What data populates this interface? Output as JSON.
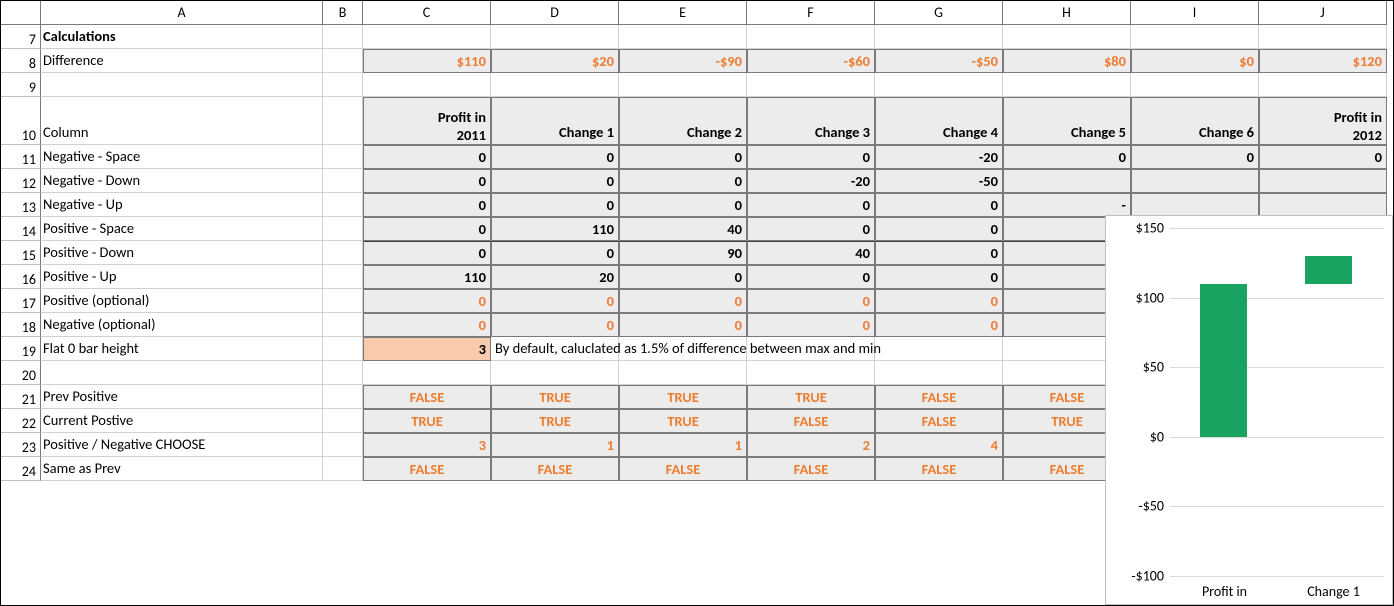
{
  "columns": {
    "rownum_width": 40,
    "labels": [
      "A",
      "B",
      "C",
      "D",
      "E",
      "F",
      "G",
      "H",
      "I",
      "J"
    ]
  },
  "colors": {
    "orange": "#ED7D31",
    "gray_fill": "#ececec",
    "peach_fill": "#F8CBAD",
    "chart_bar": "#1AA260",
    "grid": "#d9d9d9"
  },
  "rows": [
    {
      "num": 7,
      "A": "Calculations",
      "A_bold": true
    },
    {
      "num": 8,
      "A": "Difference",
      "style": "money-orange",
      "C": "$110",
      "D": "$20",
      "E": "-$90",
      "F": "-$60",
      "G": "-$50",
      "H": "$80",
      "I": "$0",
      "J": "$120"
    },
    {
      "num": 9
    },
    {
      "num": 10,
      "height": 2,
      "A": "Column",
      "style": "header",
      "C": "Profit in\n2011",
      "D": "Change 1",
      "E": "Change 2",
      "F": "Change 3",
      "G": "Change 4",
      "H": "Change 5",
      "I": "Change 6",
      "J": "Profit in\n2012"
    },
    {
      "num": 11,
      "A": "Negative - Space",
      "style": "num",
      "C": "0",
      "D": "0",
      "E": "0",
      "F": "0",
      "G": "-20",
      "H": "0",
      "I": "0",
      "J": "0"
    },
    {
      "num": 12,
      "A": "Negative - Down",
      "style": "num",
      "C": "0",
      "D": "0",
      "E": "0",
      "F": "-20",
      "G": "-50"
    },
    {
      "num": 13,
      "A": "Negative - Up",
      "style": "num",
      "C": "0",
      "D": "0",
      "E": "0",
      "F": "0",
      "G": "0",
      "H": "-"
    },
    {
      "num": 14,
      "A": "Positive - Space",
      "style": "num",
      "C": "0",
      "D": "110",
      "E": "40",
      "F": "0",
      "G": "0"
    },
    {
      "num": 15,
      "A": "Positive - Down",
      "style": "num",
      "strong_top": true,
      "C": "0",
      "D": "0",
      "E": "90",
      "F": "40",
      "G": "0"
    },
    {
      "num": 16,
      "A": "Positive - Up",
      "style": "num",
      "C": "110",
      "D": "20",
      "E": "0",
      "F": "0",
      "G": "0"
    },
    {
      "num": 17,
      "A": "Positive (optional)",
      "style": "num-orange",
      "C": "0",
      "D": "0",
      "E": "0",
      "F": "0",
      "G": "0"
    },
    {
      "num": 18,
      "A": "Negative (optional)",
      "style": "num-orange",
      "C": "0",
      "D": "0",
      "E": "0",
      "F": "0",
      "G": "0"
    },
    {
      "num": 19,
      "A": "Flat 0 bar height",
      "style": "flat0",
      "C": "3",
      "D_overflow": "By default, caluclated as 1.5% of difference between max and min"
    },
    {
      "num": 20
    },
    {
      "num": 21,
      "A": "Prev Positive",
      "style": "bool-orange",
      "C": "FALSE",
      "D": "TRUE",
      "E": "TRUE",
      "F": "TRUE",
      "G": "FALSE",
      "H": "FALSE"
    },
    {
      "num": 22,
      "A": "Current Postive",
      "style": "bool-orange",
      "C": "TRUE",
      "D": "TRUE",
      "E": "TRUE",
      "F": "FALSE",
      "G": "FALSE",
      "H": "TRUE"
    },
    {
      "num": 23,
      "A": "Positive / Negative CHOOSE",
      "style": "num-orange-right",
      "C": "3",
      "D": "1",
      "E": "1",
      "F": "2",
      "G": "4"
    },
    {
      "num": 24,
      "A": "Same as Prev",
      "style": "bool-orange",
      "C": "FALSE",
      "D": "FALSE",
      "E": "FALSE",
      "F": "FALSE",
      "G": "FALSE",
      "H": "FALSE"
    }
  ],
  "chart": {
    "ylim": [
      -100,
      150
    ],
    "yticks": [
      -100,
      -50,
      0,
      50,
      100,
      150
    ],
    "ytick_labels": [
      "-$100",
      "-$50",
      "$0",
      "$50",
      "$100",
      "$150"
    ],
    "grid_color": "#d9d9d9",
    "bar_color": "#1AA260",
    "bars": [
      {
        "x_center": 0.25,
        "width": 0.22,
        "y0": 0,
        "y1": 110
      },
      {
        "x_center": 0.74,
        "width": 0.22,
        "y0": 110,
        "y1": 130
      }
    ],
    "x_labels": [
      "Profit in",
      "Change 1"
    ]
  }
}
